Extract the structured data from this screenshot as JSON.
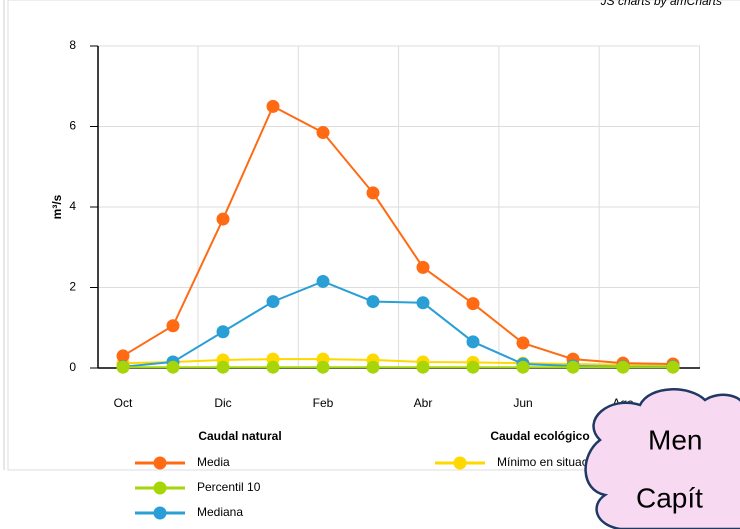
{
  "chart_data": {
    "type": "line",
    "credit": "JS charts by amCharts",
    "y_label": "m³/s",
    "categories": [
      "Oct",
      null,
      "Dic",
      null,
      "Feb",
      null,
      "Abr",
      null,
      "Jun",
      null,
      "Ago",
      null
    ],
    "series": [
      {
        "name": "Media",
        "color": "#ff6a13",
        "values": [
          0.3,
          1.05,
          3.7,
          6.5,
          5.85,
          4.35,
          2.5,
          1.6,
          0.62,
          0.22,
          0.12,
          0.1
        ]
      },
      {
        "name": "Percentil 10",
        "color": "#a6d609",
        "values": [
          0.02,
          0.02,
          0.02,
          0.02,
          0.02,
          0.02,
          0.02,
          0.02,
          0.02,
          0.02,
          0.02,
          0.02
        ]
      },
      {
        "name": "Mediana",
        "color": "#2a9fd6",
        "values": [
          0.03,
          0.15,
          0.9,
          1.65,
          2.15,
          1.65,
          1.62,
          0.65,
          0.1,
          0.05,
          0.03,
          0.03
        ]
      },
      {
        "name": "Mínimo en situación nor",
        "color": "#ffd800",
        "values": [
          0.12,
          0.15,
          0.2,
          0.22,
          0.22,
          0.2,
          0.15,
          0.14,
          0.12,
          0.1,
          0.08,
          0.08
        ]
      }
    ],
    "legend_titles": [
      "Caudal natural",
      "Caudal ecológico"
    ],
    "ylim": [
      0,
      8
    ],
    "yticks": [
      0,
      2,
      4,
      6,
      8
    ],
    "grid": true
  },
  "callout": {
    "lines": [
      "Men",
      "Capít"
    ]
  }
}
